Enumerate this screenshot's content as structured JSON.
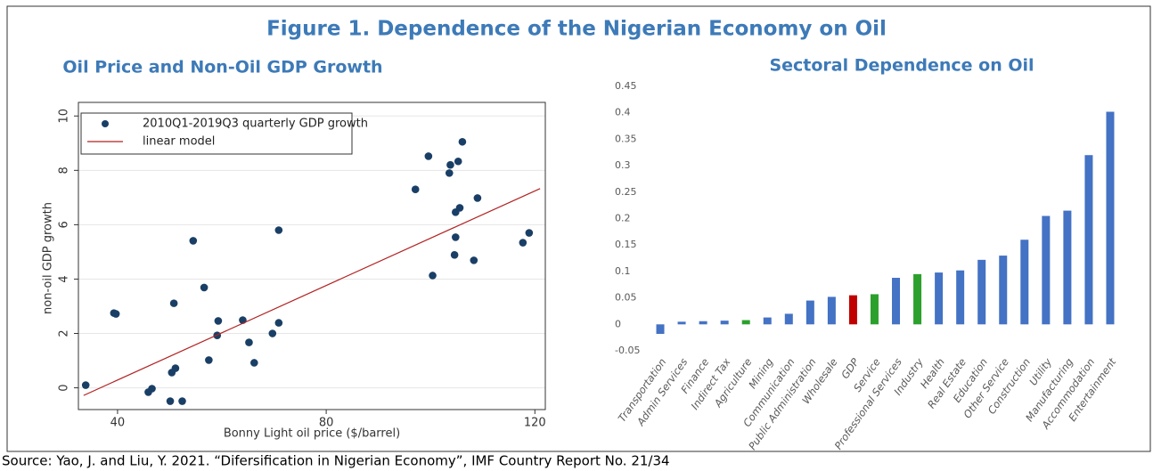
{
  "title": "Figure 1. Dependence of the Nigerian Economy on Oil",
  "source": "Source: Yao, J. and Liu, Y. 2021. “Difersification in Nigerian Economy”, IMF Country Report No. 21/34",
  "chart_data": [
    {
      "type": "scatter",
      "title": "Oil Price and Non-Oil GDP Growth",
      "x_label": "Bonny Light oil price ($/barrel)",
      "y_label": "non-oil GDP growth",
      "xlim": [
        32.5,
        122
      ],
      "xticks": [
        40,
        80,
        120
      ],
      "ylim": [
        -0.8,
        10.5
      ],
      "yticks": [
        0,
        2,
        4,
        6,
        8,
        10
      ],
      "grid": true,
      "legend": "top-left",
      "series": [
        {
          "name": "2010Q1-2019Q3 quarterly GDP growth",
          "style": "markers",
          "color": "#1a3f66",
          "x": [
            33.9,
            39.3,
            39.7,
            45.9,
            46.6,
            50.1,
            52.4,
            50.4,
            51.1,
            50.8,
            54.5,
            56.6,
            57.5,
            59.3,
            59.1,
            64.0,
            65.2,
            66.2,
            69.7,
            70.9,
            70.9,
            97.1,
            99.6,
            100.4,
            103.6,
            103.8,
            104.8,
            104.8,
            105.3,
            105.6,
            106.1,
            104.6,
            108.3,
            109.0,
            117.7,
            118.9
          ],
          "values": [
            0.1,
            2.75,
            2.72,
            -0.16,
            -0.03,
            -0.49,
            -0.49,
            0.56,
            0.72,
            3.11,
            5.41,
            3.69,
            1.02,
            2.46,
            1.93,
            2.49,
            1.67,
            0.92,
            2.0,
            2.39,
            5.8,
            7.3,
            8.52,
            4.13,
            7.9,
            8.2,
            6.46,
            5.54,
            8.33,
            6.62,
            9.05,
            4.89,
            4.69,
            6.98,
            5.34,
            5.7
          ]
        },
        {
          "name": "linear model",
          "style": "line",
          "color": "#b22222",
          "x": [
            33.5,
            121
          ],
          "values": [
            -0.28,
            7.33
          ]
        }
      ]
    },
    {
      "type": "bar",
      "title": "Sectoral Dependence on Oil",
      "ylim": [
        -0.05,
        0.45
      ],
      "yticks": [
        -0.05,
        0,
        0.05,
        0.1,
        0.15,
        0.2,
        0.25,
        0.3,
        0.35,
        0.4,
        0.45
      ],
      "categories": [
        "Transportation",
        "Admin Services",
        "Finance",
        "Indirect Tax",
        "Agriculture",
        "Mining",
        "Communication",
        "Public Administration",
        "Wholesale",
        "GDP",
        "Service",
        "Professional Services",
        "Industry",
        "Health",
        "Real Estate",
        "Education",
        "Other Service",
        "Construction",
        "Utility",
        "Manufacturing",
        "Accommodation",
        "Entertainment"
      ],
      "values": [
        -0.018,
        0.005,
        0.006,
        0.007,
        0.008,
        0.013,
        0.02,
        0.045,
        0.052,
        0.055,
        0.057,
        0.088,
        0.095,
        0.098,
        0.102,
        0.122,
        0.13,
        0.16,
        0.205,
        0.215,
        0.32,
        0.402
      ],
      "colors": [
        "#4472c4",
        "#4472c4",
        "#4472c4",
        "#4472c4",
        "#2ca02c",
        "#4472c4",
        "#4472c4",
        "#4472c4",
        "#4472c4",
        "#c00000",
        "#2ca02c",
        "#4472c4",
        "#2ca02c",
        "#4472c4",
        "#4472c4",
        "#4472c4",
        "#4472c4",
        "#4472c4",
        "#4472c4",
        "#4472c4",
        "#4472c4",
        "#4472c4"
      ]
    }
  ]
}
